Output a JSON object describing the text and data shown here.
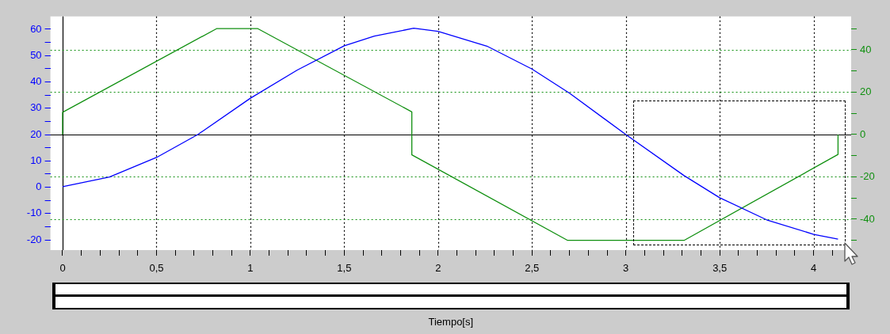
{
  "chart_data": {
    "type": "line",
    "xlabel": "Tiempo[s]",
    "xlim": [
      -0.065,
      4.2
    ],
    "ylim": [
      -23.9,
      64.9
    ],
    "y2lim": [
      -54.6,
      55.8
    ],
    "xticks": [
      0,
      {
        "value": 0.1,
        "label": null
      },
      {
        "value": 0.2,
        "label": null
      },
      {
        "value": 0.3,
        "label": null
      },
      {
        "value": 0.4,
        "label": null
      },
      {
        "value": 0.5,
        "label": "0,5"
      },
      {
        "value": 0.6,
        "label": null
      },
      {
        "value": 0.7,
        "label": null
      },
      {
        "value": 0.8,
        "label": null
      },
      {
        "value": 0.9,
        "label": null
      },
      1,
      {
        "value": 1.1,
        "label": null
      },
      {
        "value": 1.2,
        "label": null
      },
      {
        "value": 1.3,
        "label": null
      },
      {
        "value": 1.4,
        "label": null
      },
      {
        "value": 1.5,
        "label": "1,5"
      },
      {
        "value": 1.6,
        "label": null
      },
      {
        "value": 1.7,
        "label": null
      },
      {
        "value": 1.8,
        "label": null
      },
      {
        "value": 1.9,
        "label": null
      },
      2,
      {
        "value": 2.1,
        "label": null
      },
      {
        "value": 2.2,
        "label": null
      },
      {
        "value": 2.3,
        "label": null
      },
      {
        "value": 2.4,
        "label": null
      },
      {
        "value": 2.5,
        "label": "2,5"
      },
      {
        "value": 2.6,
        "label": null
      },
      {
        "value": 2.7,
        "label": null
      },
      {
        "value": 2.8,
        "label": null
      },
      {
        "value": 2.9,
        "label": null
      },
      3,
      {
        "value": 3.1,
        "label": null
      },
      {
        "value": 3.2,
        "label": null
      },
      {
        "value": 3.3,
        "label": null
      },
      {
        "value": 3.4,
        "label": null
      },
      {
        "value": 3.5,
        "label": "3,5"
      },
      {
        "value": 3.6,
        "label": null
      },
      {
        "value": 3.7,
        "label": null
      },
      {
        "value": 3.8,
        "label": null
      },
      {
        "value": 3.9,
        "label": null
      },
      4,
      {
        "value": 4.1,
        "label": null
      }
    ],
    "yticks": [
      -20,
      {
        "value": -15,
        "label": null
      },
      -10,
      {
        "value": -5,
        "label": null
      },
      0,
      {
        "value": 5,
        "label": null
      },
      10,
      {
        "value": 15,
        "label": null
      },
      20,
      {
        "value": 25,
        "label": null
      },
      30,
      {
        "value": 35,
        "label": null
      },
      40,
      {
        "value": 45,
        "label": null
      },
      50,
      {
        "value": 55,
        "label": null
      },
      60
    ],
    "y2ticks": [
      {
        "value": -50,
        "label": null
      },
      -40,
      {
        "value": -30,
        "label": null
      },
      -20,
      {
        "value": -10,
        "label": null
      },
      0,
      {
        "value": 10,
        "label": null
      },
      20,
      {
        "value": 30,
        "label": null
      },
      40,
      {
        "value": 50,
        "label": null
      }
    ],
    "grid": true,
    "legend": false,
    "series": [
      {
        "color": "#0000ff",
        "x": [
          0,
          0.25,
          0.5,
          0.72,
          1,
          1.25,
          1.5,
          1.66,
          1.87,
          2,
          2.26,
          2.5,
          2.7,
          3,
          3.31,
          3.5,
          3.75,
          4,
          4.13
        ],
        "values": [
          0.2,
          3.9,
          11.3,
          20,
          33.8,
          44.5,
          53.7,
          57.4,
          60.4,
          59.2,
          53.6,
          44.9,
          35.7,
          20,
          4.4,
          -4,
          -12.4,
          -17.9,
          -19.7
        ]
      },
      {
        "color": "#109010",
        "axis": "y2",
        "x": [
          0,
          0,
          0.82,
          1.04,
          1.86,
          1.86,
          2.69,
          3.31,
          4.13,
          4.13
        ],
        "values": [
          0,
          10.5,
          50,
          50,
          10.7,
          -9.6,
          -50,
          -50,
          -9.4,
          0
        ]
      }
    ]
  }
}
